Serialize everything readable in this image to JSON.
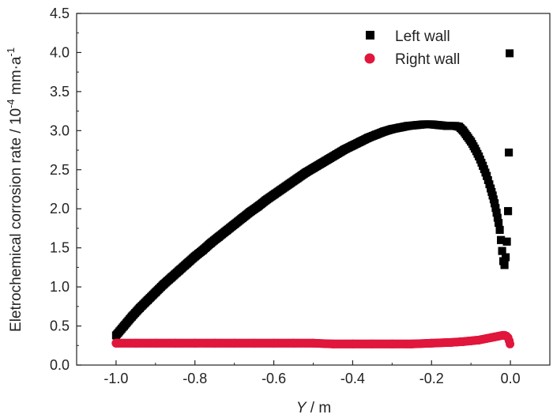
{
  "chart_data": {
    "type": "scatter",
    "xlabel_var": "Y",
    "xlabel_unit": " / m",
    "ylabel": "Eletrochemical corrosion rate / 10",
    "ylabel_exp": "-4",
    "ylabel_unit": " mm·a",
    "ylabel_unit_exp": "-1",
    "xlim": [
      -1.1,
      0.1
    ],
    "ylim": [
      0.0,
      4.5
    ],
    "xticks": [
      -1.0,
      -0.8,
      -0.6,
      -0.4,
      -0.2,
      0.0
    ],
    "xtick_labels": [
      "-1.0",
      "-0.8",
      "-0.6",
      "-0.4",
      "-0.2",
      "0.0"
    ],
    "yticks": [
      0.0,
      0.5,
      1.0,
      1.5,
      2.0,
      2.5,
      3.0,
      3.5,
      4.0,
      4.5
    ],
    "ytick_labels": [
      "0.0",
      "0.5",
      "1.0",
      "1.5",
      "2.0",
      "2.5",
      "3.0",
      "3.5",
      "4.0",
      "4.5"
    ],
    "legend_position": "top-right",
    "grid": false,
    "series": [
      {
        "name": "Left wall",
        "marker": "square",
        "color": "#000000",
        "x": [
          -1.0,
          -0.98,
          -0.96,
          -0.94,
          -0.92,
          -0.9,
          -0.88,
          -0.86,
          -0.84,
          -0.82,
          -0.8,
          -0.78,
          -0.76,
          -0.74,
          -0.72,
          -0.7,
          -0.68,
          -0.66,
          -0.64,
          -0.62,
          -0.6,
          -0.58,
          -0.56,
          -0.54,
          -0.52,
          -0.5,
          -0.48,
          -0.46,
          -0.44,
          -0.42,
          -0.4,
          -0.38,
          -0.36,
          -0.34,
          -0.32,
          -0.3,
          -0.28,
          -0.26,
          -0.24,
          -0.22,
          -0.2,
          -0.18,
          -0.16,
          -0.14,
          -0.13,
          -0.12,
          -0.11,
          -0.1,
          -0.09,
          -0.08,
          -0.07,
          -0.06,
          -0.05,
          -0.045,
          -0.04,
          -0.035,
          -0.03,
          -0.027,
          -0.024,
          -0.021,
          -0.018,
          -0.015,
          -0.012,
          -0.009,
          -0.006,
          -0.004,
          -0.002
        ],
        "y": [
          0.38,
          0.5,
          0.62,
          0.73,
          0.83,
          0.93,
          1.03,
          1.12,
          1.21,
          1.3,
          1.39,
          1.47,
          1.56,
          1.64,
          1.72,
          1.8,
          1.88,
          1.96,
          2.03,
          2.11,
          2.18,
          2.25,
          2.32,
          2.39,
          2.46,
          2.52,
          2.58,
          2.64,
          2.7,
          2.76,
          2.81,
          2.86,
          2.91,
          2.95,
          2.99,
          3.02,
          3.04,
          3.06,
          3.07,
          3.08,
          3.08,
          3.07,
          3.06,
          3.06,
          3.05,
          3.0,
          2.93,
          2.86,
          2.77,
          2.67,
          2.55,
          2.42,
          2.26,
          2.17,
          2.07,
          1.95,
          1.82,
          1.73,
          1.6,
          1.46,
          1.33,
          1.28,
          1.38,
          1.58,
          1.97,
          2.72,
          3.99
        ]
      },
      {
        "name": "Right wall",
        "marker": "circle",
        "color": "#e0163c",
        "x": [
          -1.0,
          -0.95,
          -0.9,
          -0.85,
          -0.8,
          -0.75,
          -0.7,
          -0.65,
          -0.6,
          -0.55,
          -0.5,
          -0.45,
          -0.4,
          -0.35,
          -0.3,
          -0.25,
          -0.2,
          -0.15,
          -0.12,
          -0.1,
          -0.08,
          -0.06,
          -0.05,
          -0.04,
          -0.03,
          -0.02,
          -0.015,
          -0.01,
          -0.006,
          -0.003,
          -0.001
        ],
        "y": [
          0.28,
          0.28,
          0.28,
          0.28,
          0.28,
          0.28,
          0.28,
          0.28,
          0.28,
          0.28,
          0.28,
          0.27,
          0.27,
          0.27,
          0.27,
          0.27,
          0.28,
          0.29,
          0.3,
          0.31,
          0.32,
          0.34,
          0.35,
          0.36,
          0.37,
          0.38,
          0.38,
          0.37,
          0.35,
          0.31,
          0.27
        ]
      }
    ]
  }
}
